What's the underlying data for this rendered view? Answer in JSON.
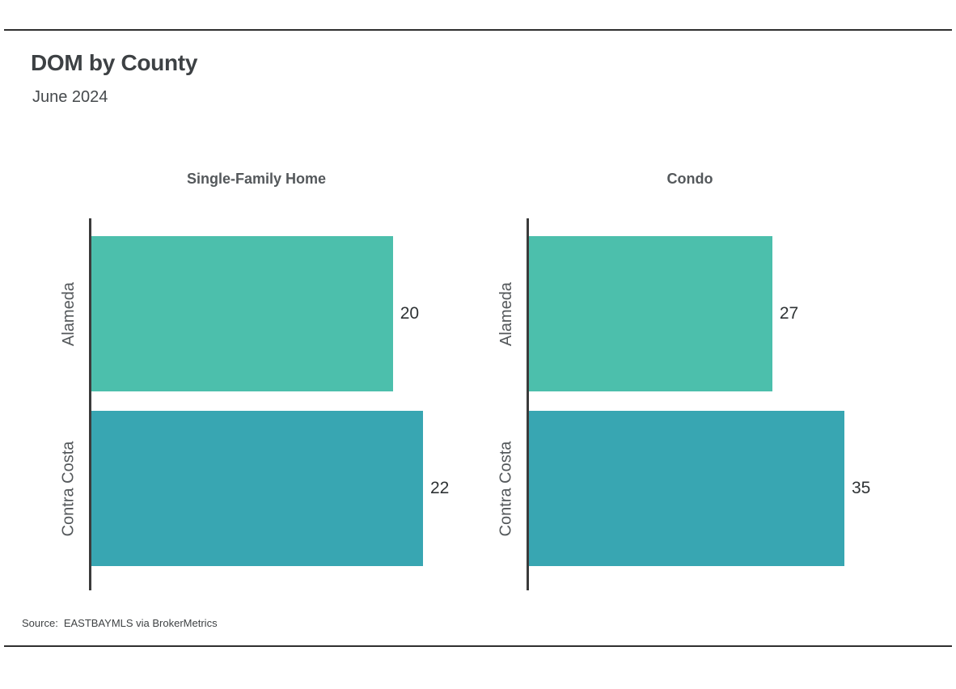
{
  "page": {
    "title": "DOM by County",
    "subtitle": "June 2024"
  },
  "source": {
    "label": "Source:",
    "text": "EASTBAYMLS via BrokerMetrics"
  },
  "colors": {
    "bar_alameda": "#4CBFAC",
    "bar_contra_costa": "#38A6B2",
    "axis": "#3b3b3b",
    "rule": "#2f2f2f",
    "title_text": "#3d4144",
    "panel_title_text": "#54585b"
  },
  "chart_data": {
    "type": "bar",
    "orientation": "horizontal",
    "title": "DOM by County",
    "subtitle": "June 2024",
    "categories": [
      "Alameda",
      "Contra Costa"
    ],
    "panels": [
      {
        "label": "Single-Family Home",
        "values": [
          20,
          22
        ],
        "xmax": 22
      },
      {
        "label": "Condo",
        "values": [
          27,
          35
        ],
        "xmax": 35
      }
    ],
    "bar_colors": [
      "#4CBFAC",
      "#38A6B2"
    ],
    "value_labels": true,
    "grid": false,
    "legend": "none",
    "source": "Source: EASTBAYMLS via BrokerMetrics"
  }
}
